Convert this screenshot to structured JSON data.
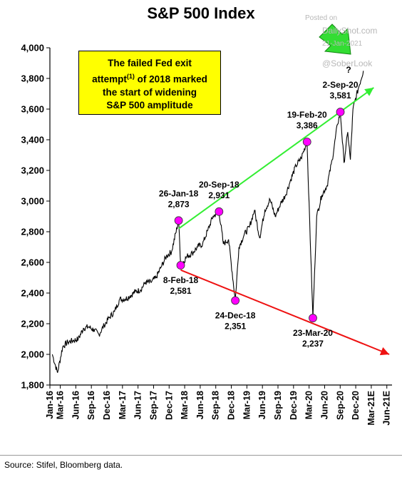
{
  "title": "S&P 500 Index",
  "callout": {
    "line1": "The failed Fed exit",
    "line2a": "attempt",
    "line2sup": "(1)",
    "line2b": " of 2018 marked",
    "line3": "the start of widening",
    "line4": "S&P 500 amplitude"
  },
  "watermark": {
    "posted": "Posted on",
    "site": "DailyShot.com",
    "date": "21-Jan-2021",
    "handle": "@SoberLook",
    "question": "?"
  },
  "source": "Source: Stifel, Bloomberg data.",
  "colors": {
    "line": "#000000",
    "up_trend": "#33ee33",
    "down_trend": "#ee1111",
    "marker": "#ff00ff",
    "callout_bg": "#ffff00"
  },
  "chart_data": {
    "type": "line",
    "title": "S&P 500 Index",
    "ylim": [
      1800,
      4000
    ],
    "y_ticks": [
      "1,800",
      "2,000",
      "2,200",
      "2,400",
      "2,600",
      "2,800",
      "3,000",
      "3,200",
      "3,400",
      "3,600",
      "3,800",
      "4,000"
    ],
    "x_range": [
      "2016-01",
      "2021-07"
    ],
    "x_ticks": [
      "Jan-16",
      "Mar-16",
      "Jun-16",
      "Sep-16",
      "Dec-16",
      "Mar-17",
      "Jun-17",
      "Sep-17",
      "Dec-17",
      "Mar-18",
      "Jun-18",
      "Sep-18",
      "Dec-18",
      "Mar-19",
      "Jun-19",
      "Sep-19",
      "Dec-19",
      "Mar-20",
      "Jun-20",
      "Sep-20",
      "Dec-20",
      "Mar-21E",
      "Jun-21E"
    ],
    "series": [
      {
        "x": [
          "2016-01",
          "2016-02",
          "2016-03",
          "2016-04",
          "2016-05",
          "2016-06",
          "2016-07",
          "2016-08",
          "2016-09",
          "2016-10",
          "2016-11",
          "2016-12",
          "2017-01",
          "2017-02",
          "2017-03",
          "2017-04",
          "2017-05",
          "2017-06",
          "2017-07",
          "2017-08",
          "2017-09",
          "2017-10",
          "2017-11",
          "2017-12",
          "2018-01-26",
          "2018-02-08",
          "2018-03",
          "2018-04",
          "2018-05",
          "2018-06",
          "2018-07",
          "2018-08",
          "2018-09-20",
          "2018-10",
          "2018-11",
          "2018-12-24",
          "2019-01",
          "2019-02",
          "2019-03",
          "2019-04",
          "2019-05",
          "2019-06",
          "2019-07",
          "2019-08",
          "2019-09",
          "2019-10",
          "2019-11",
          "2019-12",
          "2020-01",
          "2020-02-19",
          "2020-03-23",
          "2020-04",
          "2020-05",
          "2020-06",
          "2020-07",
          "2020-08",
          "2020-09-02",
          "2020-09-23",
          "2020-10",
          "2020-10-30",
          "2020-11",
          "2020-12",
          "2021-01"
        ],
        "y": [
          2000,
          1880,
          2050,
          2080,
          2090,
          2100,
          2170,
          2180,
          2160,
          2130,
          2190,
          2240,
          2280,
          2360,
          2360,
          2380,
          2410,
          2420,
          2470,
          2470,
          2500,
          2570,
          2640,
          2670,
          2873,
          2581,
          2640,
          2660,
          2700,
          2720,
          2810,
          2900,
          2931,
          2720,
          2750,
          2351,
          2700,
          2780,
          2830,
          2940,
          2760,
          2940,
          3010,
          2900,
          2980,
          3040,
          3140,
          3230,
          3280,
          3386,
          2237,
          2900,
          3040,
          3100,
          3270,
          3500,
          3581,
          3250,
          3450,
          3270,
          3600,
          3730,
          3850
        ]
      }
    ],
    "trend_lines": [
      {
        "color": "up_trend",
        "from": {
          "x": "2018-01-26",
          "y": 2820
        },
        "to": {
          "x": "2021-03",
          "y": 3740
        }
      },
      {
        "color": "down_trend",
        "from": {
          "x": "2018-02-08",
          "y": 2550
        },
        "to": {
          "x": "2021-06",
          "y": 2000
        }
      }
    ],
    "annotations": [
      {
        "x": "2018-01-26",
        "y": 2873,
        "date": "26-Jan-18",
        "value": "2,873",
        "pos": "above"
      },
      {
        "x": "2018-02-08",
        "y": 2581,
        "date": "8-Feb-18",
        "value": "2,581",
        "pos": "below"
      },
      {
        "x": "2018-09-20",
        "y": 2931,
        "date": "20-Sep-18",
        "value": "2,931",
        "pos": "above"
      },
      {
        "x": "2018-12-24",
        "y": 2351,
        "date": "24-Dec-18",
        "value": "2,351",
        "pos": "below"
      },
      {
        "x": "2020-02-19",
        "y": 3386,
        "date": "19-Feb-20",
        "value": "3,386",
        "pos": "above"
      },
      {
        "x": "2020-03-23",
        "y": 2237,
        "date": "23-Mar-20",
        "value": "2,237",
        "pos": "below"
      },
      {
        "x": "2020-09-02",
        "y": 3581,
        "date": "2-Sep-20",
        "value": "3,581",
        "pos": "above"
      }
    ],
    "grid": false,
    "legend": "none"
  }
}
